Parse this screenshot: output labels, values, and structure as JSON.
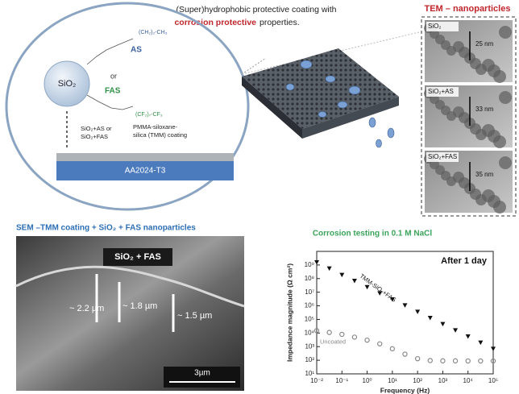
{
  "header": {
    "line1": "(Super)hydrophobic protective coating with",
    "highlight": "corrosion protective",
    "line2": "properties."
  },
  "diagram": {
    "particle": "SiO₂",
    "as": "AS",
    "or": "or",
    "fas": "FAS",
    "as_chain": "(CH₂)₂-CH₃",
    "fas_chain": "(CF₂)₇-CF₃",
    "mix_line1": "SiO₂+AS or",
    "mix_line2": "SiO₂+FAS",
    "coat_line1": "PMMA-siloxane-",
    "coat_line2": "silica (TMM) coating",
    "substrate": "AA2024-T3"
  },
  "tem": {
    "title": "TEM – nanoparticles",
    "panels": [
      {
        "label": "SiO₂",
        "size": "25 nm"
      },
      {
        "label": "SiO₂+AS",
        "size": "33 nm"
      },
      {
        "label": "SiO₂+FAS",
        "size": "35 nm"
      }
    ]
  },
  "sem": {
    "title": "SEM –TMM coating + SiO₂ + FAS nanoparticles",
    "tag": "SiO₂ + FAS",
    "thickness": [
      "~ 2.2 µm",
      "~ 1.8 µm",
      "~ 1.5 µm"
    ],
    "scale": "3µm"
  },
  "chart_data": {
    "type": "scatter",
    "title": "Corrosion testing in 0.1 M NaCl",
    "annotation": "After 1 day",
    "x_label": "Frequency (Hz)",
    "y_label": "Impedance magnitude (Ω cm²)",
    "x_log": true,
    "y_log": true,
    "x": [
      0.01,
      0.0316,
      0.1,
      0.316,
      1,
      3.16,
      10,
      31.6,
      100,
      316,
      1000,
      3160,
      10000,
      31600,
      100000
    ],
    "series": [
      {
        "name": "TMM-SiO₂+FAS",
        "color": "#111111",
        "values": [
          1600000000,
          560000000,
          190000000,
          69000000,
          24000000,
          8500000,
          3000000,
          1100000,
          370000,
          130000,
          46000,
          16000,
          5700,
          2000,
          700
        ]
      },
      {
        "name": "Uncoated",
        "color": "#888888",
        "values": [
          15000,
          11000,
          8000,
          5000,
          3000,
          1600,
          700,
          280,
          130,
          95,
          90,
          90,
          88,
          88,
          88
        ]
      }
    ],
    "xlim": [
      0.01,
      100000
    ],
    "ylim": [
      10,
      10000000000
    ],
    "xticks": [
      {
        "value": 0.01,
        "label": "10⁻²"
      },
      {
        "value": 0.1,
        "label": "10⁻¹"
      },
      {
        "value": 1,
        "label": "10⁰"
      },
      {
        "value": 10,
        "label": "10¹"
      },
      {
        "value": 100,
        "label": "10²"
      },
      {
        "value": 1000,
        "label": "10³"
      },
      {
        "value": 10000,
        "label": "10⁴"
      },
      {
        "value": 100000,
        "label": "10⁵"
      }
    ],
    "yticks": [
      {
        "value": 10,
        "label": "10¹"
      },
      {
        "value": 100,
        "label": "10²"
      },
      {
        "value": 1000,
        "label": "10³"
      },
      {
        "value": 10000,
        "label": "10⁴"
      },
      {
        "value": 100000,
        "label": "10⁵"
      },
      {
        "value": 1000000,
        "label": "10⁶"
      },
      {
        "value": 10000000,
        "label": "10⁷"
      },
      {
        "value": 100000000,
        "label": "10⁸"
      },
      {
        "value": 1000000000,
        "label": "10⁹"
      }
    ]
  }
}
